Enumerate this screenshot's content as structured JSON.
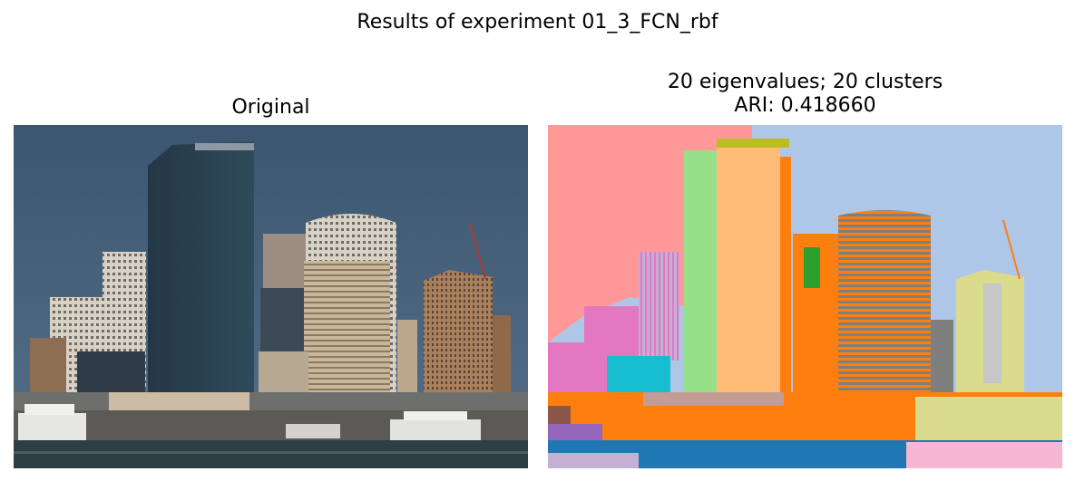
{
  "suptitle": "Results of experiment 01_3_FCN_rbf",
  "left_panel": {
    "title": "Original"
  },
  "right_panel": {
    "title_line1": "20 eigenvalues; 20 clusters",
    "title_line2": "ARI: 0.418660"
  },
  "cluster_colors": [
    "#ff9896",
    "#aec7e8",
    "#98df8a",
    "#ffbb78",
    "#ff7f0e",
    "#1f77b4",
    "#17becf",
    "#e377c2",
    "#dbdb8d",
    "#7f7f7f",
    "#2ca02c",
    "#c5b0d5",
    "#9467bd",
    "#f7b6d2",
    "#8c564b",
    "#c49c94",
    "#bcbd22",
    "#c7c7c7"
  ]
}
